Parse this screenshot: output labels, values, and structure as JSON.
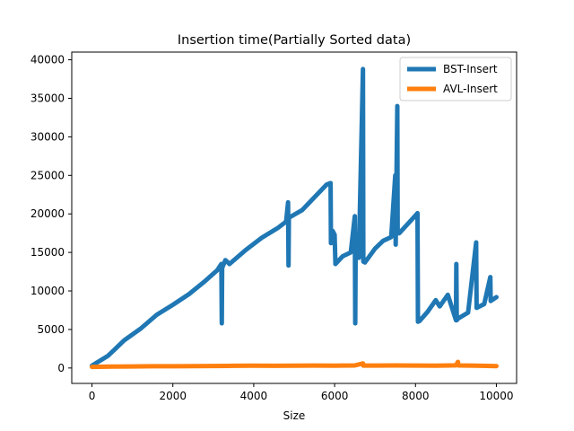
{
  "chart_data": {
    "type": "line",
    "title": "Insertion time(Partially Sorted data)",
    "xlabel": "Size",
    "ylabel": "",
    "xlim": [
      -500,
      10500
    ],
    "ylim": [
      -2000,
      41000
    ],
    "xticks": [
      0,
      2000,
      4000,
      6000,
      8000,
      10000
    ],
    "yticks": [
      0,
      5000,
      10000,
      15000,
      20000,
      25000,
      30000,
      35000,
      40000
    ],
    "grid": false,
    "legend_position": "top-right",
    "series": [
      {
        "name": "BST-Insert",
        "color": "#1f77b4",
        "points": [
          [
            0,
            300
          ],
          [
            400,
            1600
          ],
          [
            800,
            3600
          ],
          [
            1200,
            5100
          ],
          [
            1600,
            6900
          ],
          [
            2000,
            8200
          ],
          [
            2400,
            9600
          ],
          [
            2800,
            11300
          ],
          [
            3100,
            12700
          ],
          [
            3200,
            13500
          ],
          [
            3210,
            5800
          ],
          [
            3220,
            13000
          ],
          [
            3300,
            14000
          ],
          [
            3400,
            13500
          ],
          [
            3800,
            15300
          ],
          [
            4200,
            16900
          ],
          [
            4600,
            18200
          ],
          [
            4800,
            19000
          ],
          [
            4850,
            21500
          ],
          [
            4860,
            13300
          ],
          [
            4870,
            19500
          ],
          [
            5200,
            20500
          ],
          [
            5600,
            22700
          ],
          [
            5800,
            23800
          ],
          [
            5900,
            24000
          ],
          [
            5910,
            16200
          ],
          [
            5950,
            17800
          ],
          [
            6000,
            17300
          ],
          [
            6020,
            13500
          ],
          [
            6200,
            14500
          ],
          [
            6400,
            15000
          ],
          [
            6500,
            19700
          ],
          [
            6510,
            5800
          ],
          [
            6520,
            14600
          ],
          [
            6600,
            14300
          ],
          [
            6700,
            38800
          ],
          [
            6710,
            13800
          ],
          [
            6750,
            13700
          ],
          [
            7000,
            15500
          ],
          [
            7200,
            16500
          ],
          [
            7400,
            17000
          ],
          [
            7500,
            25000
          ],
          [
            7510,
            16000
          ],
          [
            7550,
            34000
          ],
          [
            7560,
            17500
          ],
          [
            7600,
            17500
          ],
          [
            8000,
            19800
          ],
          [
            8050,
            20100
          ],
          [
            8060,
            6000
          ],
          [
            8100,
            6100
          ],
          [
            8300,
            7300
          ],
          [
            8500,
            8800
          ],
          [
            8600,
            8000
          ],
          [
            8800,
            9500
          ],
          [
            9000,
            6200
          ],
          [
            9010,
            13500
          ],
          [
            9020,
            6200
          ],
          [
            9050,
            6400
          ],
          [
            9300,
            7200
          ],
          [
            9500,
            16300
          ],
          [
            9510,
            7800
          ],
          [
            9700,
            8300
          ],
          [
            9850,
            11800
          ],
          [
            9860,
            8700
          ],
          [
            10000,
            9200
          ]
        ]
      },
      {
        "name": "AVL-Insert",
        "color": "#ff7f0e",
        "points": [
          [
            0,
            150
          ],
          [
            500,
            180
          ],
          [
            1000,
            200
          ],
          [
            1500,
            220
          ],
          [
            2000,
            230
          ],
          [
            2500,
            250
          ],
          [
            3000,
            260
          ],
          [
            3500,
            280
          ],
          [
            4000,
            300
          ],
          [
            4500,
            280
          ],
          [
            5000,
            300
          ],
          [
            5500,
            320
          ],
          [
            6000,
            310
          ],
          [
            6500,
            330
          ],
          [
            6700,
            600
          ],
          [
            6710,
            320
          ],
          [
            7000,
            320
          ],
          [
            7500,
            330
          ],
          [
            8000,
            320
          ],
          [
            8500,
            300
          ],
          [
            9000,
            340
          ],
          [
            9050,
            800
          ],
          [
            9060,
            330
          ],
          [
            9500,
            300
          ],
          [
            10000,
            250
          ]
        ]
      }
    ]
  }
}
